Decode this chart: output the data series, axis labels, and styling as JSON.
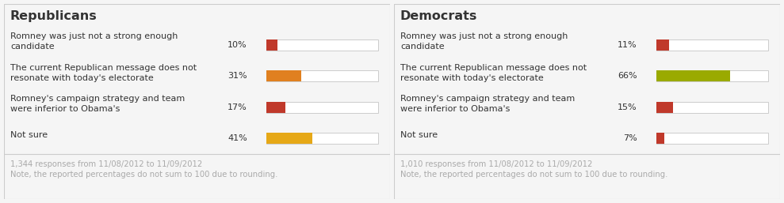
{
  "panels": [
    {
      "title": "Republicans",
      "categories": [
        "Romney was just not a strong enough\ncandidate",
        "The current Republican message does not\nresonate with today's electorate",
        "Romney's campaign strategy and team\nwere inferior to Obama's",
        "Not sure"
      ],
      "values": [
        10,
        31,
        17,
        41
      ],
      "colors": [
        "#c0392b",
        "#e08020",
        "#c0392b",
        "#e6a817"
      ],
      "footnote1": "1,344 responses from 11/08/2012 to 11/09/2012",
      "footnote2": "Note, the reported percentages do not sum to 100 due to rounding."
    },
    {
      "title": "Democrats",
      "categories": [
        "Romney was just not a strong enough\ncandidate",
        "The current Republican message does not\nresonate with today's electorate",
        "Romney's campaign strategy and team\nwere inferior to Obama's",
        "Not sure"
      ],
      "values": [
        11,
        66,
        15,
        7
      ],
      "colors": [
        "#c0392b",
        "#9aaa00",
        "#c0392b",
        "#c0392b"
      ],
      "footnote1": "1,010 responses from 11/08/2012 to 11/09/2012",
      "footnote2": "Note, the reported percentages do not sum to 100 due to rounding."
    }
  ],
  "bg_color": "#f5f5f5",
  "panel_bg": "#ffffff",
  "border_color": "#cccccc",
  "title_fontsize": 11.5,
  "label_fontsize": 8.0,
  "pct_fontsize": 8.0,
  "footnote_fontsize": 7.2,
  "text_color": "#333333",
  "footnote_color": "#aaaaaa"
}
